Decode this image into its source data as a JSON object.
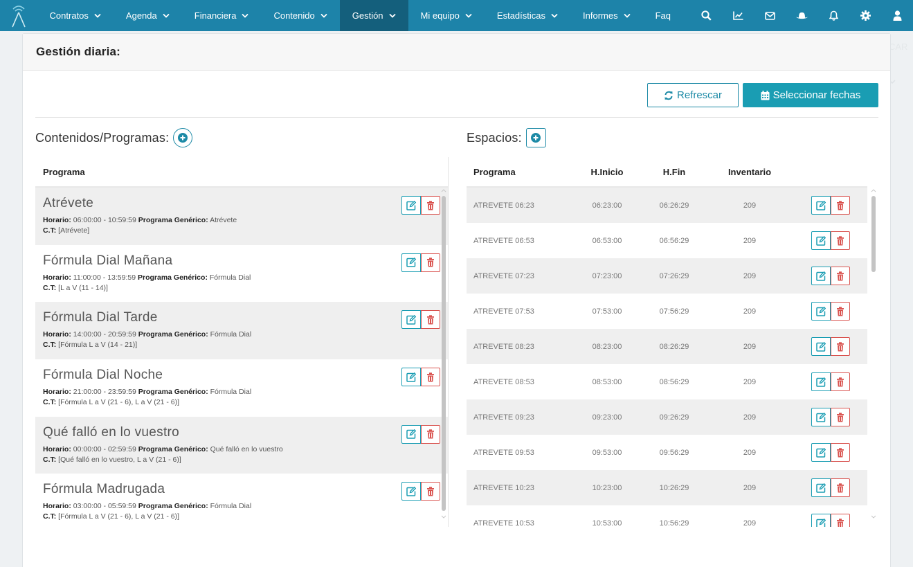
{
  "nav": {
    "items": [
      {
        "label": "Contratos",
        "chevron": true,
        "active": false
      },
      {
        "label": "Agenda",
        "chevron": true,
        "active": false
      },
      {
        "label": "Financiera",
        "chevron": true,
        "active": false
      },
      {
        "label": "Contenido",
        "chevron": true,
        "active": false
      },
      {
        "label": "Gestión",
        "chevron": true,
        "active": true
      },
      {
        "label": "Mi equipo",
        "chevron": true,
        "active": false
      },
      {
        "label": "Estadísticas",
        "chevron": true,
        "active": false
      },
      {
        "label": "Informes",
        "chevron": true,
        "active": false
      },
      {
        "label": "Faq",
        "chevron": false,
        "active": false
      }
    ],
    "icons": [
      "search-icon",
      "chart-icon",
      "mail-icon",
      "hat-icon",
      "bell-icon",
      "gear-icon",
      "user-icon"
    ],
    "ghost_text": "CAR"
  },
  "colors": {
    "navbar": "#1d83a9",
    "nav_active": "#145f7c",
    "accent": "#1a9db3",
    "danger": "#d9534f"
  },
  "page": {
    "title": "Gestión diaria:",
    "refresh_label": "Refrescar",
    "dates_label": "Seleccionar fechas"
  },
  "programs": {
    "title": "Contenidos/Programas:",
    "column_header": "Programa",
    "horario_label": "Horario:",
    "generico_label": "Programa Genérico:",
    "ct_label": "C.T:",
    "rows": [
      {
        "name": "Atrévete",
        "horario": "06:00:00 - 10:59:59",
        "generico": "Atrévete",
        "ct": "[Atrévete]"
      },
      {
        "name": "Fórmula Dial Mañana",
        "horario": "11:00:00 - 13:59:59",
        "generico": "Fórmula Dial",
        "ct": "[L a V (11 - 14)]"
      },
      {
        "name": "Fórmula Dial Tarde",
        "horario": "14:00:00 - 20:59:59",
        "generico": "Fórmula Dial",
        "ct": "[Fórmula L a V (14 - 21)]"
      },
      {
        "name": "Fórmula Dial Noche",
        "horario": "21:00:00 - 23:59:59",
        "generico": "Fórmula Dial",
        "ct": "[Fórmula L a V (21 - 6), L a V (21 - 6)]"
      },
      {
        "name": "Qué falló en lo vuestro",
        "horario": "00:00:00 - 02:59:59",
        "generico": "Qué falló en lo vuestro",
        "ct": "[Qué falló en lo vuestro, L a V (21 - 6)]"
      },
      {
        "name": "Fórmula Madrugada",
        "horario": "03:00:00 - 05:59:59",
        "generico": "Fórmula Dial",
        "ct": "[Fórmula L a V (21 - 6), L a V (21 - 6)]"
      }
    ]
  },
  "spaces": {
    "title": "Espacios:",
    "headers": {
      "programa": "Programa",
      "inicio": "H.Inicio",
      "fin": "H.Fin",
      "inventario": "Inventario"
    },
    "rows": [
      {
        "programa": "ATREVETE 06:23",
        "inicio": "06:23:00",
        "fin": "06:26:29",
        "inventario": "209"
      },
      {
        "programa": "ATREVETE 06:53",
        "inicio": "06:53:00",
        "fin": "06:56:29",
        "inventario": "209"
      },
      {
        "programa": "ATREVETE 07:23",
        "inicio": "07:23:00",
        "fin": "07:26:29",
        "inventario": "209"
      },
      {
        "programa": "ATREVETE 07:53",
        "inicio": "07:53:00",
        "fin": "07:56:29",
        "inventario": "209"
      },
      {
        "programa": "ATREVETE 08:23",
        "inicio": "08:23:00",
        "fin": "08:26:29",
        "inventario": "209"
      },
      {
        "programa": "ATREVETE 08:53",
        "inicio": "08:53:00",
        "fin": "08:56:29",
        "inventario": "209"
      },
      {
        "programa": "ATREVETE 09:23",
        "inicio": "09:23:00",
        "fin": "09:26:29",
        "inventario": "209"
      },
      {
        "programa": "ATREVETE 09:53",
        "inicio": "09:53:00",
        "fin": "09:56:29",
        "inventario": "209"
      },
      {
        "programa": "ATREVETE 10:23",
        "inicio": "10:23:00",
        "fin": "10:26:29",
        "inventario": "209"
      },
      {
        "programa": "ATREVETE 10:53",
        "inicio": "10:53:00",
        "fin": "10:56:29",
        "inventario": "209"
      }
    ]
  }
}
